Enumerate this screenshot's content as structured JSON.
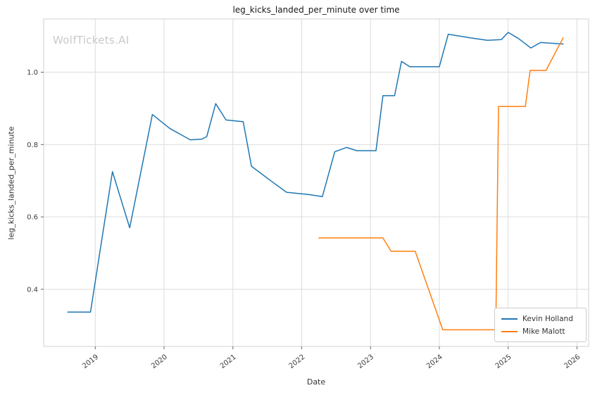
{
  "watermark": "WolfTickets.AI",
  "chart_data": {
    "type": "line",
    "title": "leg_kicks_landed_per_minute over time",
    "xlabel": "Date",
    "ylabel": "leg_kicks_landed_per_minute",
    "xlim": [
      2018.25,
      2026.17
    ],
    "ylim": [
      0.242,
      1.147
    ],
    "grid": true,
    "legend_position": "lower right",
    "xticks": {
      "values": [
        2019,
        2020,
        2021,
        2022,
        2023,
        2024,
        2025,
        2026
      ],
      "labels": [
        "2019",
        "2020",
        "2021",
        "2022",
        "2023",
        "2024",
        "2025",
        "2026"
      ]
    },
    "yticks": {
      "values": [
        0.4,
        0.6,
        0.8,
        1.0
      ],
      "labels": [
        "0.4",
        "0.6",
        "0.8",
        "1.0"
      ]
    },
    "series": [
      {
        "name": "Kevin Holland",
        "color": "#1f77b4",
        "x": [
          2018.6,
          2018.93,
          2019.25,
          2019.5,
          2019.83,
          2020.08,
          2020.38,
          2020.55,
          2020.62,
          2020.75,
          2020.9,
          2021.15,
          2021.27,
          2021.55,
          2021.78,
          2022.1,
          2022.3,
          2022.48,
          2022.65,
          2022.8,
          2023.08,
          2023.18,
          2023.35,
          2023.45,
          2023.57,
          2024.0,
          2024.13,
          2024.45,
          2024.7,
          2024.9,
          2025.0,
          2025.15,
          2025.33,
          2025.47,
          2025.8
        ],
        "y": [
          0.337,
          0.337,
          0.725,
          0.57,
          0.883,
          0.845,
          0.813,
          0.815,
          0.822,
          0.913,
          0.868,
          0.863,
          0.74,
          0.7,
          0.668,
          0.662,
          0.656,
          0.78,
          0.792,
          0.783,
          0.783,
          0.935,
          0.935,
          1.03,
          1.015,
          1.015,
          1.105,
          1.095,
          1.088,
          1.09,
          1.11,
          1.093,
          1.067,
          1.082,
          1.078
        ]
      },
      {
        "name": "Mike Malott",
        "color": "#ff7f0e",
        "x": [
          2022.25,
          2023.18,
          2023.3,
          2023.65,
          2024.05,
          2024.75,
          2024.82,
          2024.86,
          2025.25,
          2025.32,
          2025.55,
          2025.8
        ],
        "y": [
          0.542,
          0.542,
          0.505,
          0.505,
          0.288,
          0.288,
          0.288,
          0.905,
          0.905,
          1.005,
          1.005,
          1.095
        ]
      }
    ]
  }
}
